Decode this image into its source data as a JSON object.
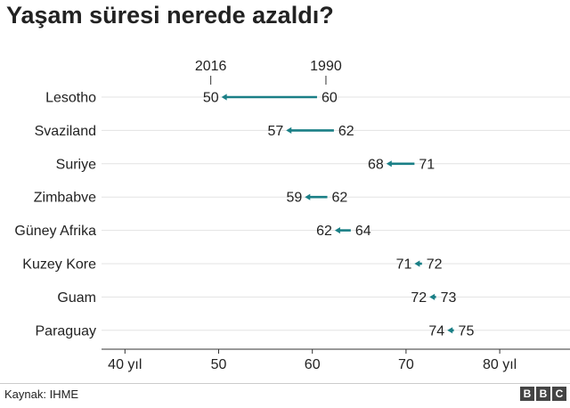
{
  "title": "Yaşam süresi nerede azaldı?",
  "source": "Kaynak: IHME",
  "logo": {
    "letters": [
      "B",
      "B",
      "C"
    ]
  },
  "colors": {
    "arrow": "#1a7f86",
    "grid": "#e3e3e3",
    "axis": "#333333",
    "text": "#222222"
  },
  "chart_data": {
    "type": "arrow-dot",
    "title": "Yaşam süresi nerede azaldı?",
    "legend": {
      "start_label": "1990",
      "end_label": "2016",
      "reference_row": "Lesotho"
    },
    "x_tick_values": [
      40,
      50,
      60,
      70,
      80
    ],
    "x_tick_labels": [
      "40 yıl",
      "50",
      "60",
      "70",
      "80 yıl"
    ],
    "xlim": [
      37.5,
      87.5
    ],
    "grid": true,
    "rows": [
      {
        "country": "Lesotho",
        "value_1990": 60,
        "value_2016": 50,
        "point_1990": 60.5,
        "point_2016": 50.3
      },
      {
        "country": "Svaziland",
        "value_1990": 62,
        "value_2016": 57,
        "point_1990": 62.3,
        "point_2016": 57.2
      },
      {
        "country": "Suriye",
        "value_1990": 71,
        "value_2016": 68,
        "point_1990": 70.9,
        "point_2016": 67.9
      },
      {
        "country": "Zimbabve",
        "value_1990": 62,
        "value_2016": 59,
        "point_1990": 61.6,
        "point_2016": 59.2
      },
      {
        "country": "Güney Afrika",
        "value_1990": 64,
        "value_2016": 62,
        "point_1990": 64.1,
        "point_2016": 62.4
      },
      {
        "country": "Kuzey Kore",
        "value_1990": 72,
        "value_2016": 71,
        "point_1990": 71.7,
        "point_2016": 70.9
      },
      {
        "country": "Guam",
        "value_1990": 73,
        "value_2016": 72,
        "point_1990": 73.2,
        "point_2016": 72.5
      },
      {
        "country": "Paraguay",
        "value_1990": 75,
        "value_2016": 74,
        "point_1990": 75.1,
        "point_2016": 74.4
      }
    ]
  }
}
